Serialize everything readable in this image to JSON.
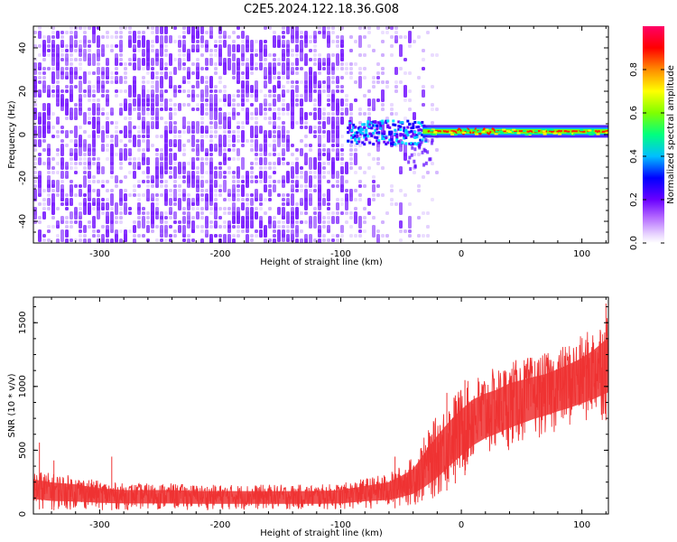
{
  "title": "C2E5.2024.122.18.36.G08",
  "colors": {
    "snr_line": "#ee3333",
    "spectrogram_base": "#7b1fff",
    "colormap": [
      "#f4e8ff",
      "#cc99ff",
      "#8a2be2",
      "#5a00ff",
      "#0000ff",
      "#00bfff",
      "#00ff7f",
      "#7fff00",
      "#ffff00",
      "#ff8c00",
      "#ff0000",
      "#ff0066"
    ]
  },
  "chart_data": [
    {
      "type": "heatmap",
      "name": "spectrogram",
      "xlabel": "Height of straight line (km)",
      "ylabel": "Frequency (Hz)",
      "xlim": [
        -355,
        122
      ],
      "ylim": [
        -50,
        50
      ],
      "xticks": [
        -300,
        -200,
        -100,
        0,
        100
      ],
      "xtick_labels": [
        "-300",
        "-200",
        "-100",
        "0",
        "100"
      ],
      "yticks": [
        -40,
        -20,
        0,
        20,
        40
      ],
      "ytick_labels": [
        "-40",
        "-20",
        "0",
        "20",
        "40"
      ],
      "signal_line": {
        "freq_hz": 1.5,
        "from_km": -95,
        "to_km": 122
      },
      "colorbar": {
        "label": "Normalized spectral amplitude",
        "range": [
          0,
          1
        ],
        "ticks": [
          0.0,
          0.2,
          0.4,
          0.6,
          0.8
        ],
        "tick_labels": [
          "0.0",
          "0.2",
          "0.4",
          "0.6",
          "0.8"
        ]
      }
    },
    {
      "type": "line",
      "name": "snr",
      "xlabel": "Height of straight line (km)",
      "ylabel": "SNR (10 * v/v)",
      "xlim": [
        -355,
        122
      ],
      "ylim": [
        0,
        1700
      ],
      "xticks": [
        -300,
        -200,
        -100,
        0,
        100
      ],
      "xtick_labels": [
        "-300",
        "-200",
        "-100",
        "0",
        "100"
      ],
      "yticks": [
        0,
        500,
        1000,
        1500
      ],
      "ytick_labels": [
        "0",
        "500",
        "1000",
        "1500"
      ],
      "series": [
        {
          "name": "SNR",
          "x": [
            -355,
            -340,
            -320,
            -300,
            -280,
            -260,
            -240,
            -220,
            -200,
            -180,
            -160,
            -140,
            -120,
            -100,
            -80,
            -60,
            -50,
            -40,
            -30,
            -20,
            -10,
            0,
            10,
            20,
            30,
            40,
            50,
            60,
            70,
            80,
            90,
            100,
            110,
            122
          ],
          "y_low": [
            40,
            30,
            30,
            30,
            30,
            30,
            30,
            30,
            30,
            30,
            30,
            30,
            30,
            30,
            40,
            40,
            50,
            60,
            80,
            120,
            200,
            280,
            360,
            420,
            460,
            500,
            540,
            580,
            610,
            640,
            660,
            690,
            710,
            740
          ],
          "y_high": [
            350,
            320,
            300,
            260,
            240,
            240,
            240,
            230,
            230,
            230,
            230,
            230,
            230,
            240,
            280,
            320,
            380,
            450,
            620,
            780,
            900,
            1000,
            1080,
            1120,
            1150,
            1200,
            1220,
            1240,
            1260,
            1300,
            1350,
            1400,
            1480,
            1600
          ],
          "spikes": [
            {
              "x": -350,
              "y": 560
            },
            {
              "x": -338,
              "y": 420
            },
            {
              "x": -290,
              "y": 450
            },
            {
              "x": -55,
              "y": 450
            },
            {
              "x": -12,
              "y": 950
            },
            {
              "x": -5,
              "y": 930
            },
            {
              "x": 3,
              "y": 1050
            },
            {
              "x": 120,
              "y": 1650
            }
          ]
        }
      ]
    }
  ]
}
